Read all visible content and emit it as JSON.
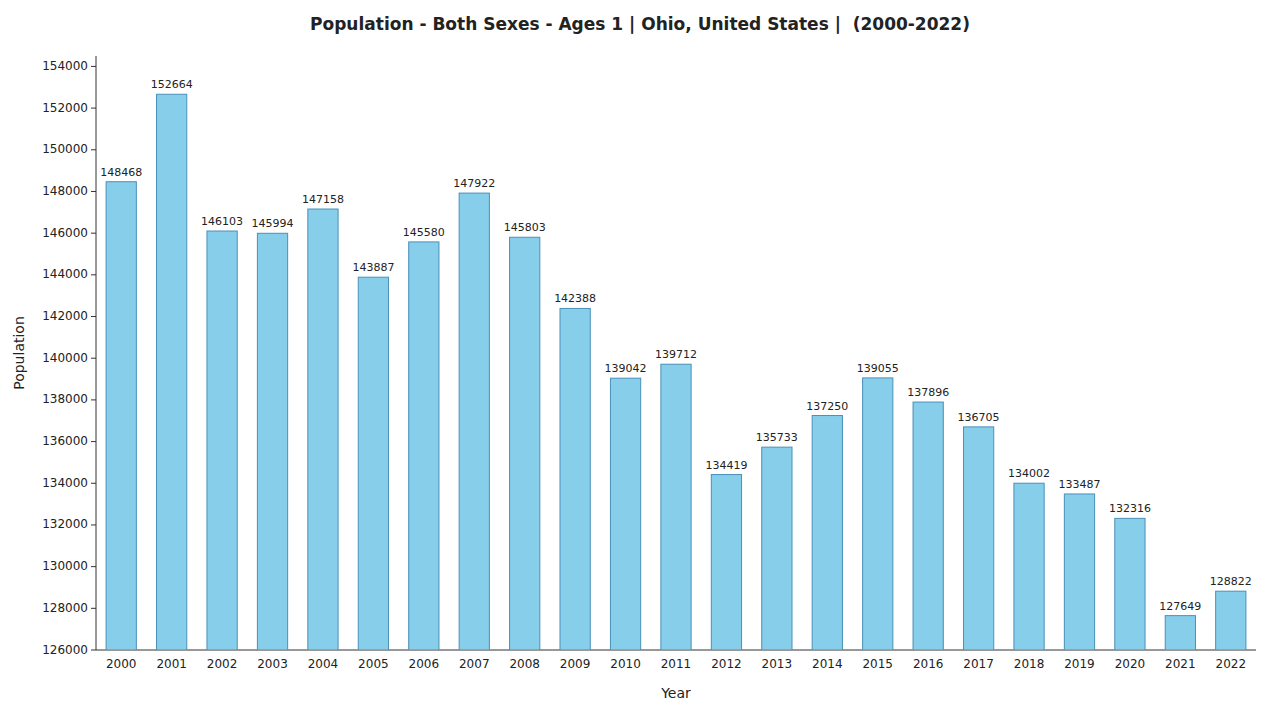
{
  "chart_data": {
    "type": "bar",
    "title": "Population - Both Sexes - Ages 1 | Ohio, United States |  (2000-2022)",
    "xlabel": "Year",
    "ylabel": "Population",
    "categories": [
      "2000",
      "2001",
      "2002",
      "2003",
      "2004",
      "2005",
      "2006",
      "2007",
      "2008",
      "2009",
      "2010",
      "2011",
      "2012",
      "2013",
      "2014",
      "2015",
      "2016",
      "2017",
      "2018",
      "2019",
      "2020",
      "2021",
      "2022"
    ],
    "values": [
      148468,
      152664,
      146103,
      145994,
      147158,
      143887,
      145580,
      147922,
      145803,
      142388,
      139042,
      139712,
      134419,
      135733,
      137250,
      139055,
      137896,
      136705,
      134002,
      133487,
      132316,
      127649,
      128822
    ],
    "color": "#87CEEB",
    "ylim": [
      126000,
      154500
    ],
    "yticks": [
      126000,
      128000,
      130000,
      132000,
      134000,
      136000,
      138000,
      140000,
      142000,
      144000,
      146000,
      148000,
      150000,
      152000,
      154000
    ],
    "grid": false,
    "data_labels": true
  }
}
